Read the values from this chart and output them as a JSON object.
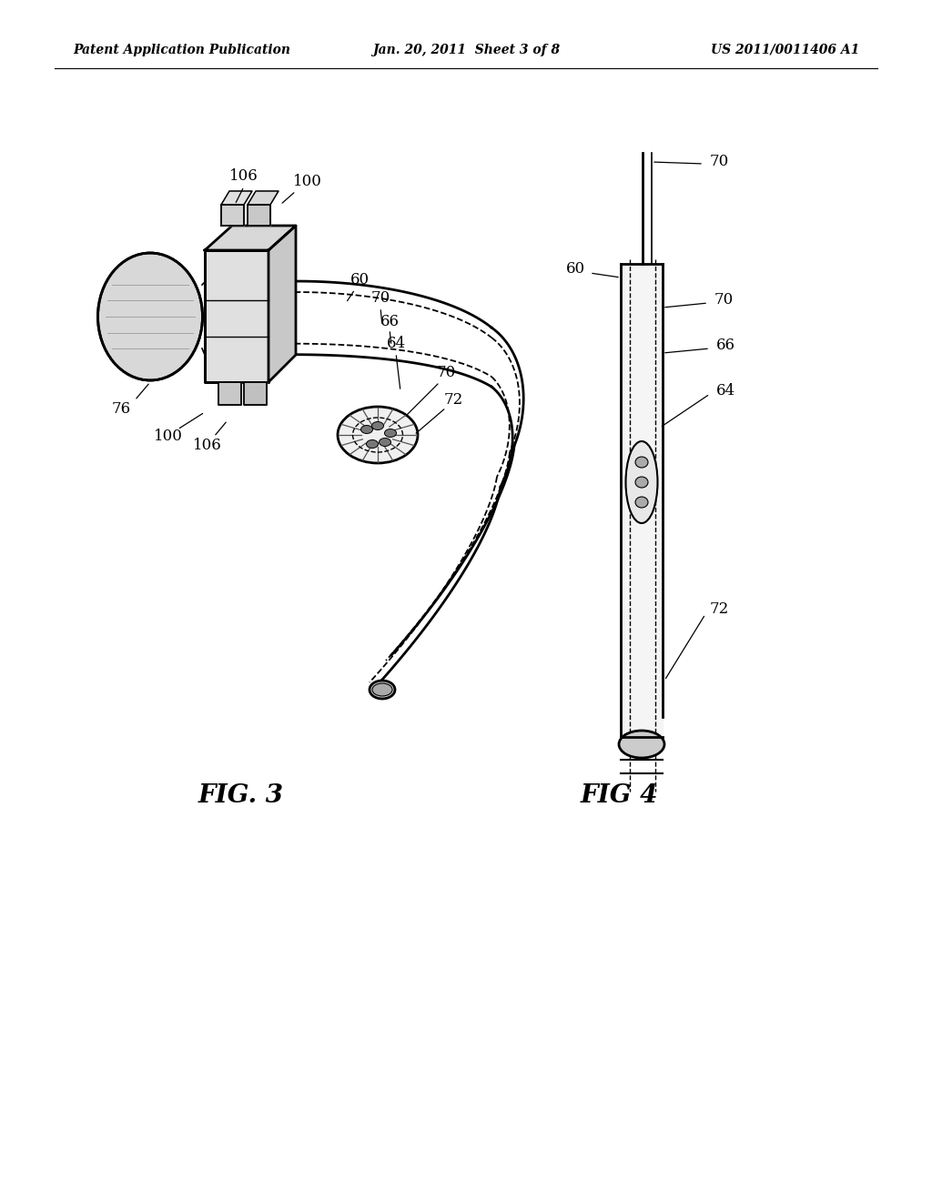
{
  "background_color": "#ffffff",
  "header_left": "Patent Application Publication",
  "header_center": "Jan. 20, 2011  Sheet 3 of 8",
  "header_right": "US 2011/0011406 A1",
  "fig3_label": "FIG. 3",
  "fig4_label": "FIG 4",
  "title_fontsize": 10,
  "label_fontsize": 12,
  "fig_label_fontsize": 20
}
